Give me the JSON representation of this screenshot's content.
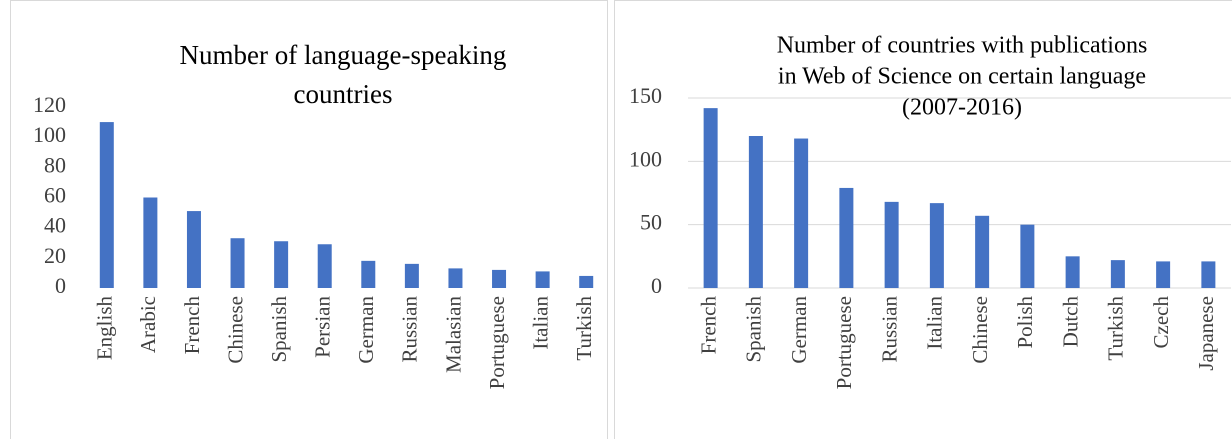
{
  "chart_data": [
    {
      "type": "bar",
      "title": [
        "Number of language-speaking",
        "countries"
      ],
      "categories": [
        "English",
        "Arabic",
        "French",
        "Chinese",
        "Spanish",
        "Persian",
        "German",
        "Russian",
        "Malasian",
        "Portuguese",
        "Italian",
        "Turkish"
      ],
      "values": [
        110,
        60,
        51,
        33,
        31,
        29,
        18,
        16,
        13,
        12,
        11,
        8
      ],
      "color": "#4472c4",
      "ylim": [
        0,
        120
      ],
      "yticks": [
        0,
        20,
        40,
        60,
        80,
        100,
        120
      ],
      "grid": false
    },
    {
      "type": "bar",
      "title": [
        "Number of countries with publications",
        "in Web of Science on certain language",
        "(2007-2016)"
      ],
      "categories": [
        "French",
        "Spanish",
        "German",
        "Portuguese",
        "Russian",
        "Italian",
        "Chinese",
        "Polish",
        "Dutch",
        "Turkish",
        "Czech",
        "Japanese"
      ],
      "values": [
        142,
        120,
        118,
        79,
        68,
        67,
        57,
        50,
        25,
        22,
        21,
        21
      ],
      "color": "#4472c4",
      "ylim": [
        0,
        150
      ],
      "yticks": [
        0,
        50,
        100,
        150
      ],
      "grid": true
    }
  ]
}
